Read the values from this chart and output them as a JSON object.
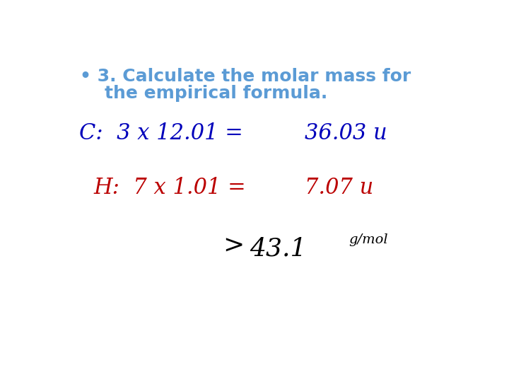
{
  "background_color": "#ffffff",
  "bullet_color": "#5b9bd5",
  "bullet_fontsize": 18,
  "carbon_color": "#0000bb",
  "hydrogen_color": "#bb0000",
  "total_color": "#000000",
  "handwriting_fontsize": 22,
  "total_fontsize": 20,
  "total_small_fontsize": 14,
  "bullet_line1": "• 3. Calculate the molar mass for",
  "bullet_line2": "    the empirical formula.",
  "carbon_left": "C:  3 x 12.01 =",
  "carbon_right": "36.03 u",
  "hydrogen_left": "H:  7 x 1.01 =",
  "hydrogen_right": "7.07 u",
  "total_symbol": ">",
  "total_value": "43.1",
  "total_unit": "g/mol"
}
